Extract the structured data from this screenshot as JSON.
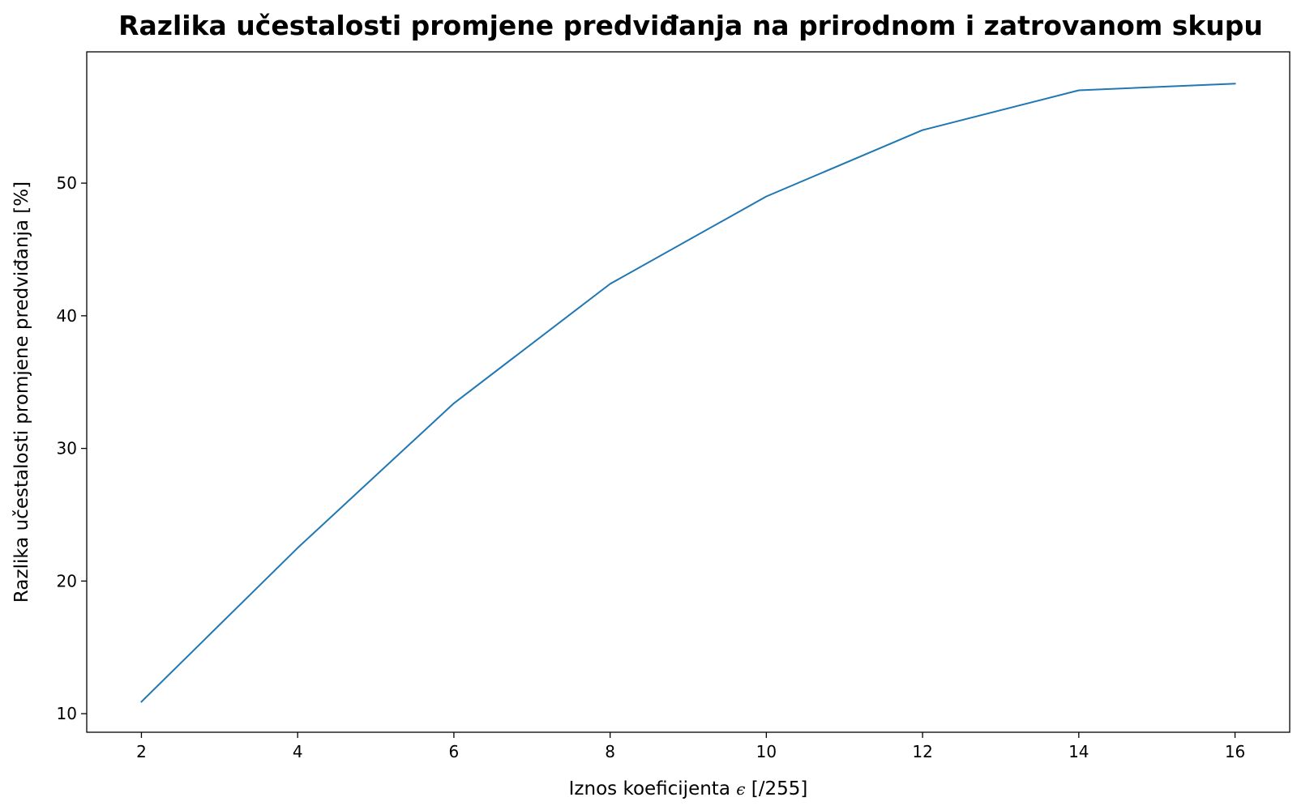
{
  "chart_data": {
    "type": "line",
    "title": "Razlika učestalosti promjene predviđanja na prirodnom i zatrovanom skupu",
    "xlabel_pre": "Iznos koeficijenta ",
    "xlabel_symbol": "ϵ",
    "xlabel_post": " [/255]",
    "ylabel": "Razlika učestalosti promjene predviđanja [%]",
    "xlim": [
      1.3,
      16.7
    ],
    "ylim": [
      8.6,
      59.9
    ],
    "xticks": [
      2,
      4,
      6,
      8,
      10,
      12,
      14,
      16
    ],
    "yticks": [
      10,
      20,
      30,
      40,
      50
    ],
    "grid": false,
    "series": [
      {
        "color": "#1f77b4",
        "x": [
          2,
          4,
          6,
          8,
          10,
          12,
          14,
          16
        ],
        "y": [
          10.9,
          22.5,
          33.4,
          42.4,
          49.0,
          54.0,
          57.0,
          57.5
        ]
      }
    ]
  }
}
